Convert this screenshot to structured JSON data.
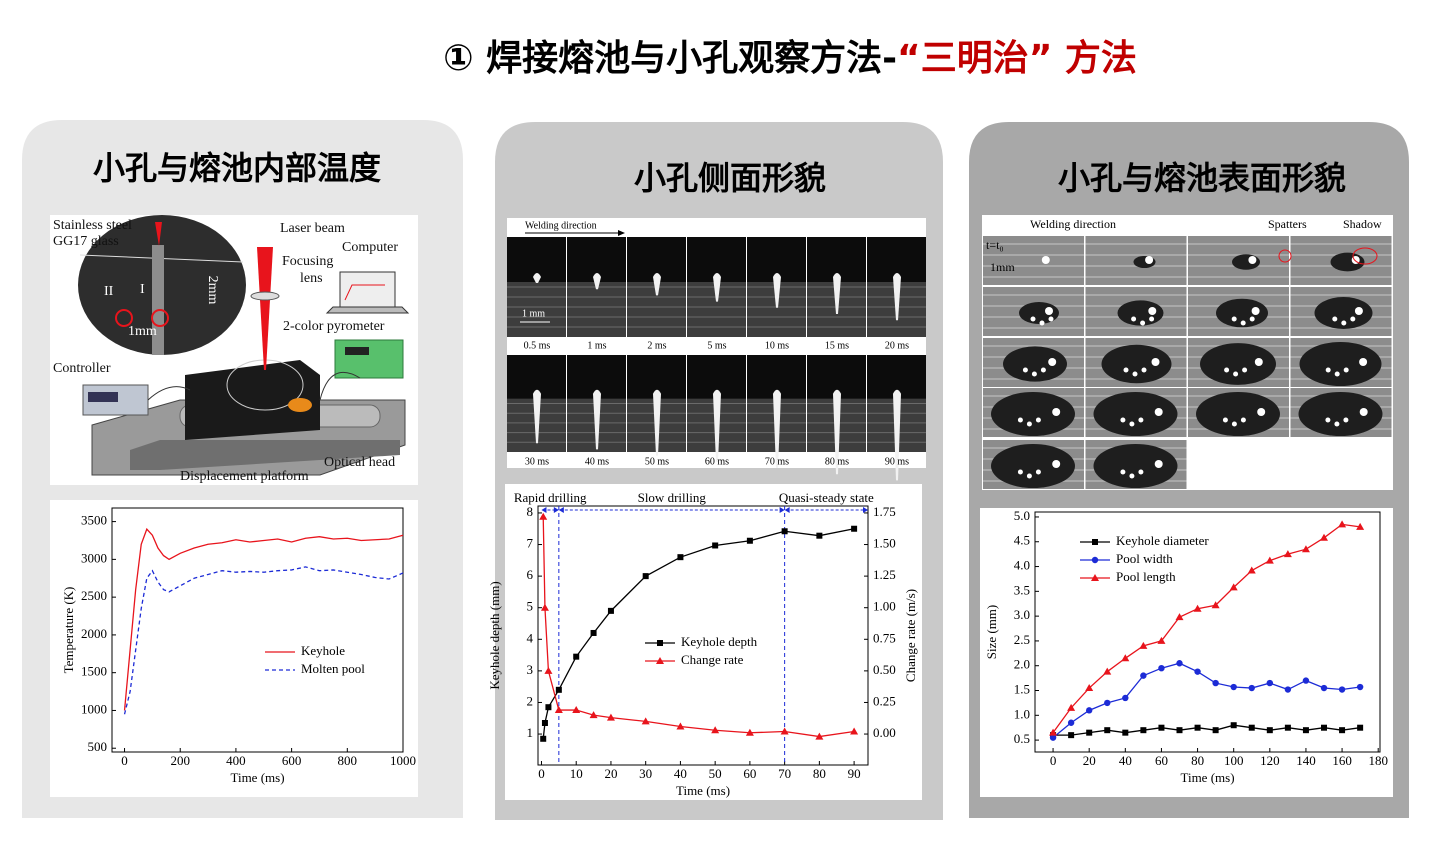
{
  "header": {
    "title_main": "① 焊接熔池与小孔观察方法-",
    "title_highlight": "“三明治” 方法"
  },
  "panels": [
    {
      "heading": "小孔与熔池内部温度",
      "diagram": {
        "stainless_steel": "Stainless steel",
        "glass": "GG17 glass",
        "laser_beam": "Laser beam",
        "computer": "Computer",
        "focusing": "Focusing",
        "lens": "lens",
        "pyrometer": "2-color pyrometer",
        "controller": "Controller",
        "optical_head": "Optical head",
        "platform": "Displacement platform",
        "inset_scale": "2mm",
        "inset_scale_small": "1mm",
        "mark_1": "I",
        "mark_2": "II"
      }
    },
    {
      "heading": "小孔侧面形貌",
      "photos": {
        "direction": "Welding direction",
        "scale": "1 mm",
        "times": [
          "0.5 ms",
          "1 ms",
          "2 ms",
          "5 ms",
          "10 ms",
          "15 ms",
          "20 ms",
          "30 ms",
          "40 ms",
          "50 ms",
          "60 ms",
          "70 ms",
          "80 ms",
          "90 ms"
        ]
      }
    },
    {
      "heading": "小孔与熔池表面形貌",
      "photos": {
        "direction": "Welding direction",
        "spatters": "Spatters",
        "shadow": "Shadow",
        "start": "t=t₀",
        "scale": "1mm"
      }
    }
  ],
  "chart_data": [
    {
      "type": "line",
      "xlabel": "Time (ms)",
      "ylabel": "Temperature (K)",
      "xlim": [
        -45,
        1000
      ],
      "xticks": [
        0,
        200,
        400,
        600,
        800,
        1000
      ],
      "ylim": [
        450,
        3680
      ],
      "yticks": [
        500,
        1000,
        1500,
        2000,
        2500,
        3000,
        3500
      ],
      "x": [
        0,
        20,
        40,
        60,
        80,
        100,
        120,
        140,
        160,
        200,
        250,
        300,
        350,
        400,
        450,
        500,
        550,
        600,
        650,
        700,
        750,
        800,
        850,
        900,
        950,
        1000
      ],
      "series": [
        {
          "name": "Keyhole",
          "color": "#e8141c",
          "dash": false,
          "values": [
            1000,
            1800,
            2600,
            3200,
            3400,
            3320,
            3150,
            3050,
            3000,
            3080,
            3150,
            3200,
            3220,
            3260,
            3230,
            3250,
            3270,
            3230,
            3280,
            3300,
            3270,
            3280,
            3250,
            3260,
            3270,
            3320
          ]
        },
        {
          "name": "Molten pool",
          "color": "#1c2bd6",
          "dash": true,
          "values": [
            950,
            1250,
            1800,
            2350,
            2750,
            2850,
            2700,
            2600,
            2570,
            2650,
            2750,
            2800,
            2850,
            2830,
            2840,
            2830,
            2850,
            2860,
            2900,
            2850,
            2860,
            2830,
            2800,
            2760,
            2740,
            2820
          ]
        }
      ]
    },
    {
      "type": "line",
      "xlabel": "Time (ms)",
      "ylabel": "Keyhole depth (mm)",
      "y2label": "Change rate (m/s)",
      "xlim": [
        -1,
        94
      ],
      "xticks": [
        0,
        10,
        20,
        30,
        40,
        50,
        60,
        70,
        80,
        90
      ],
      "ylim": [
        0.02,
        8.22
      ],
      "yticks": [
        1,
        2,
        3,
        4,
        5,
        6,
        7,
        8
      ],
      "y2lim": [
        -0.245,
        1.805
      ],
      "y2ticks": [
        {
          "value": 0,
          "label": "0.00"
        },
        {
          "value": 0.25,
          "label": "0.25"
        },
        {
          "value": 0.5,
          "label": "0.50"
        },
        {
          "value": 0.75,
          "label": "0.75"
        },
        {
          "value": 1,
          "label": "1.00"
        },
        {
          "value": 1.25,
          "label": "1.25"
        },
        {
          "value": 1.5,
          "label": "1.50"
        },
        {
          "value": 1.75,
          "label": "1.75"
        }
      ],
      "phases": [
        {
          "label": "Rapid drilling",
          "start": 0,
          "end": 5
        },
        {
          "label": "Slow drilling",
          "start": 5,
          "end": 70
        },
        {
          "label": "Quasi-steady state",
          "start": 70,
          "end": 94
        }
      ],
      "x": [
        0.5,
        1,
        2,
        5,
        10,
        15,
        20,
        30,
        40,
        50,
        60,
        70,
        80,
        90
      ],
      "series": [
        {
          "name": "Keyhole depth",
          "color": "#000000",
          "marker": "square",
          "values": [
            0.85,
            1.35,
            1.85,
            2.4,
            3.45,
            4.2,
            4.9,
            6.0,
            6.6,
            6.97,
            7.12,
            7.42,
            7.28,
            7.5
          ]
        },
        {
          "name": "Change rate",
          "color": "#e8141c",
          "marker": "triangle",
          "axis": "y2",
          "values": [
            1.72,
            1.0,
            0.5,
            0.19,
            0.19,
            0.15,
            0.13,
            0.1,
            0.06,
            0.03,
            0.01,
            0.02,
            -0.02,
            0.02
          ]
        }
      ]
    },
    {
      "type": "line",
      "xlabel": "Time (ms)",
      "ylabel": "Size (mm)",
      "xlim": [
        -10,
        181
      ],
      "xticks": [
        0,
        20,
        40,
        60,
        80,
        100,
        120,
        140,
        160,
        180
      ],
      "ylim": [
        0.26,
        5.1
      ],
      "yticks": [
        0.5,
        {
          "value": 1,
          "label": "1.0"
        },
        1.5,
        {
          "value": 2,
          "label": "2.0"
        },
        2.5,
        {
          "value": 3,
          "label": "3.0"
        },
        3.5,
        {
          "value": 4,
          "label": "4.0"
        },
        4.5,
        {
          "value": 5,
          "label": "5.0"
        }
      ],
      "x": [
        0,
        10,
        20,
        30,
        40,
        50,
        60,
        70,
        80,
        90,
        100,
        110,
        120,
        130,
        140,
        150,
        160,
        170
      ],
      "series": [
        {
          "name": "Keyhole diameter",
          "color": "#000000",
          "marker": "square",
          "values": [
            0.6,
            0.6,
            0.65,
            0.7,
            0.65,
            0.7,
            0.75,
            0.7,
            0.75,
            0.7,
            0.8,
            0.75,
            0.7,
            0.75,
            0.7,
            0.75,
            0.7,
            0.75
          ]
        },
        {
          "name": "Pool width",
          "color": "#1c2bd6",
          "marker": "circle",
          "values": [
            0.55,
            0.85,
            1.1,
            1.25,
            1.35,
            1.8,
            1.95,
            2.05,
            1.88,
            1.65,
            1.57,
            1.55,
            1.65,
            1.52,
            1.7,
            1.55,
            1.52,
            1.57
          ]
        },
        {
          "name": "Pool length",
          "color": "#e8141c",
          "marker": "triangle",
          "values": [
            0.65,
            1.15,
            1.55,
            1.88,
            2.15,
            2.4,
            2.5,
            2.98,
            3.15,
            3.22,
            3.58,
            3.92,
            4.12,
            4.25,
            4.35,
            4.58,
            4.85,
            4.8
          ]
        }
      ]
    }
  ]
}
